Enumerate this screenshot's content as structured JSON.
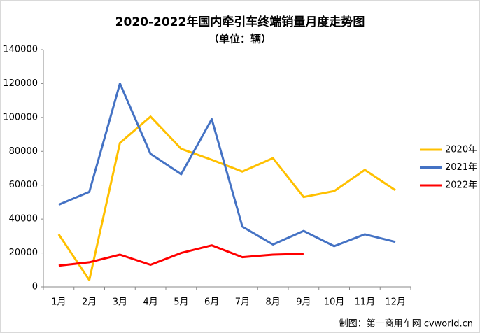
{
  "chart_data": {
    "type": "line",
    "title": "2020-2022年国内牵引车终端销量月度走势图",
    "subtitle": "（单位：辆）",
    "source": "制图：第一商用车网 cvworld.cn",
    "categories": [
      "1月",
      "2月",
      "3月",
      "4月",
      "5月",
      "6月",
      "7月",
      "8月",
      "9月",
      "10月",
      "11月",
      "12月"
    ],
    "series": [
      {
        "name": "2020年",
        "color": "#ffc000",
        "values": [
          31000,
          4000,
          85000,
          100500,
          81500,
          75000,
          68000,
          76000,
          53000,
          56500,
          69000,
          57000
        ]
      },
      {
        "name": "2021年",
        "color": "#4472c4",
        "values": [
          48500,
          56000,
          120000,
          78500,
          66500,
          99000,
          35500,
          25000,
          33000,
          24000,
          31000,
          26500
        ]
      },
      {
        "name": "2022年",
        "color": "#ff0000",
        "values": [
          12500,
          14500,
          19000,
          13000,
          20000,
          24500,
          17500,
          19000,
          19500,
          null,
          null,
          null
        ]
      }
    ],
    "ylim": [
      0,
      140000
    ],
    "yticks": [
      0,
      20000,
      40000,
      60000,
      80000,
      100000,
      120000,
      140000
    ],
    "grid": false,
    "legend": "right"
  }
}
